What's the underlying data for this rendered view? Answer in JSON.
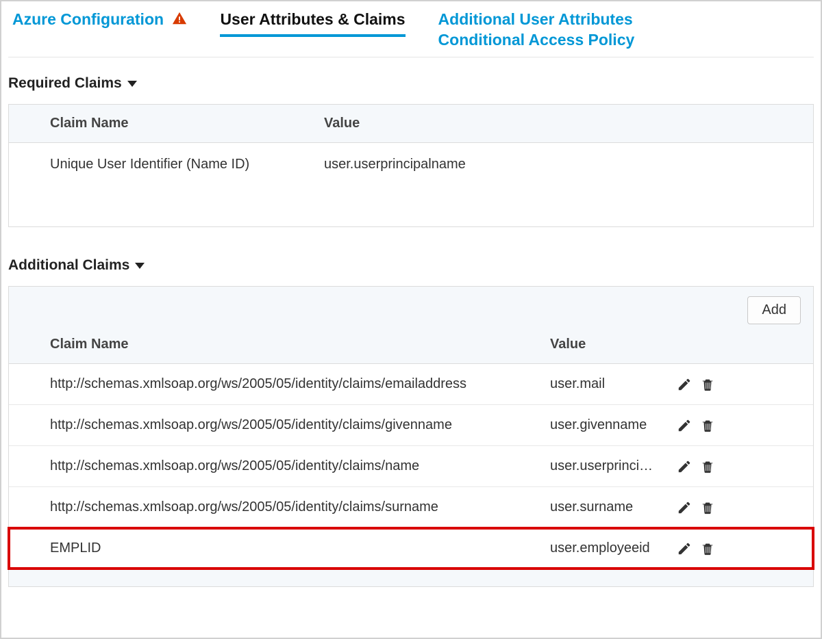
{
  "colors": {
    "accent": "#0097d6",
    "warning": "#d83b01",
    "highlight_border": "#d90000",
    "text": "#333333",
    "border": "#dcdcdc",
    "header_bg": "#f5f8fb",
    "background": "#ffffff"
  },
  "tabs": {
    "azure": {
      "label": "Azure Configuration",
      "active": false,
      "has_warning": true
    },
    "claims": {
      "label": "User Attributes & Claims",
      "active": true
    },
    "additional_attrs": {
      "label": "Additional User Attributes",
      "active": false
    },
    "conditional_access": {
      "label": "Conditional Access Policy",
      "active": false
    }
  },
  "sections": {
    "required": {
      "title": "Required Claims",
      "columns": {
        "name": "Claim Name",
        "value": "Value"
      },
      "rows": [
        {
          "name": "Unique User Identifier (Name ID)",
          "value": "user.userprincipalname"
        }
      ]
    },
    "additional": {
      "title": "Additional Claims",
      "add_button": "Add",
      "columns": {
        "name": "Claim Name",
        "value": "Value"
      },
      "rows": [
        {
          "name": "http://schemas.xmlsoap.org/ws/2005/05/identity/claims/emailaddress",
          "value": "user.mail",
          "highlight": false
        },
        {
          "name": "http://schemas.xmlsoap.org/ws/2005/05/identity/claims/givenname",
          "value": "user.givenname",
          "highlight": false
        },
        {
          "name": "http://schemas.xmlsoap.org/ws/2005/05/identity/claims/name",
          "value": "user.userprinci…",
          "highlight": false
        },
        {
          "name": "http://schemas.xmlsoap.org/ws/2005/05/identity/claims/surname",
          "value": "user.surname",
          "highlight": false
        },
        {
          "name": "EMPLID",
          "value": "user.employeeid",
          "highlight": true
        }
      ]
    }
  }
}
